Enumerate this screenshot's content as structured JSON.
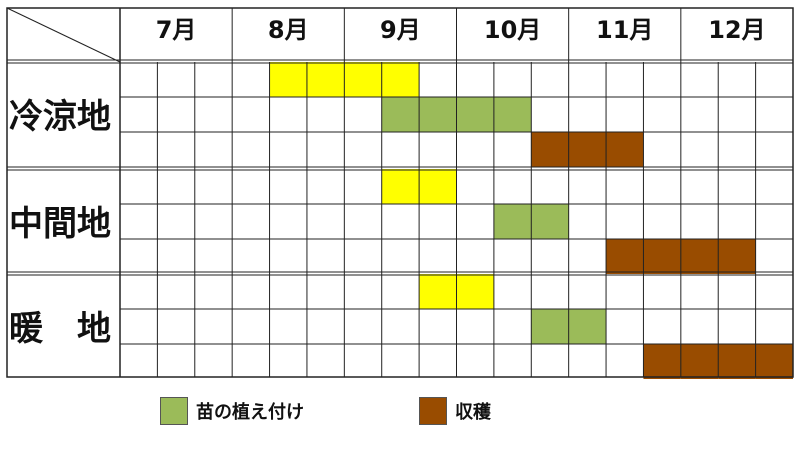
{
  "table": {
    "months": [
      "7月",
      "8月",
      "9月",
      "10月",
      "11月",
      "12月"
    ],
    "regions": [
      {
        "label": "冷涼地",
        "rows": [
          {
            "activity": "sowing",
            "cells": [
              0,
              0,
              0,
              0,
              1,
              1,
              1,
              1,
              0,
              0,
              0,
              0,
              0,
              0,
              0,
              0,
              0,
              0
            ]
          },
          {
            "activity": "planting",
            "cells": [
              0,
              0,
              0,
              0,
              0,
              0,
              0,
              2,
              2,
              2,
              2,
              0,
              0,
              0,
              0,
              0,
              0,
              0
            ]
          },
          {
            "activity": "harvest",
            "cells": [
              0,
              0,
              0,
              0,
              0,
              0,
              0,
              0,
              0,
              0,
              0,
              3,
              3,
              3,
              0,
              0,
              0,
              0
            ]
          }
        ]
      },
      {
        "label": "中間地",
        "rows": [
          {
            "activity": "sowing",
            "cells": [
              0,
              0,
              0,
              0,
              0,
              0,
              0,
              1,
              1,
              0,
              0,
              0,
              0,
              0,
              0,
              0,
              0,
              0
            ]
          },
          {
            "activity": "planting",
            "cells": [
              0,
              0,
              0,
              0,
              0,
              0,
              0,
              0,
              0,
              0,
              2,
              2,
              0,
              0,
              0,
              0,
              0,
              0
            ]
          },
          {
            "activity": "harvest",
            "cells": [
              0,
              0,
              0,
              0,
              0,
              0,
              0,
              0,
              0,
              0,
              0,
              0,
              0,
              3,
              3,
              3,
              3,
              0
            ]
          }
        ]
      },
      {
        "label": "暖　地",
        "rows": [
          {
            "activity": "sowing",
            "cells": [
              0,
              0,
              0,
              0,
              0,
              0,
              0,
              0,
              1,
              1,
              0,
              0,
              0,
              0,
              0,
              0,
              0,
              0
            ]
          },
          {
            "activity": "planting",
            "cells": [
              0,
              0,
              0,
              0,
              0,
              0,
              0,
              0,
              0,
              0,
              0,
              2,
              2,
              0,
              0,
              0,
              0,
              0
            ]
          },
          {
            "activity": "harvest",
            "cells": [
              0,
              0,
              0,
              0,
              0,
              0,
              0,
              0,
              0,
              0,
              0,
              0,
              0,
              0,
              3,
              3,
              3,
              3
            ]
          }
        ]
      }
    ]
  },
  "colors": {
    "sowing": "#ffff00",
    "planting": "#9bbb59",
    "harvest": "#994c00",
    "grid": "#222222",
    "background": "#ffffff"
  },
  "legend": [
    {
      "label": "苗の植え付け",
      "color": "#9bbb59"
    },
    {
      "label": "収穫",
      "color": "#994c00"
    }
  ]
}
